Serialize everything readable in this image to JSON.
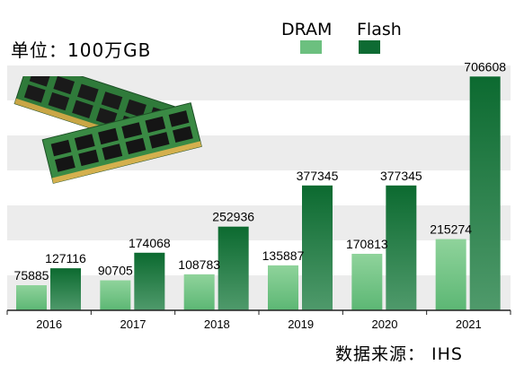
{
  "unit_label": "单位：100万GB",
  "source_label": "数据来源： IHS",
  "legend": [
    {
      "name": "DRAM",
      "color": "#6cc07f"
    },
    {
      "name": "Flash",
      "color": "#0e6b33"
    }
  ],
  "colors": {
    "band_light": "#ececec",
    "band_white": "#ffffff",
    "axis": "#222222",
    "dram_top": "#8fd39b",
    "dram_bottom": "#5cb774",
    "flash_top": "#0c6a30",
    "flash_bottom": "#4f9a6b"
  },
  "chart_data": {
    "type": "bar",
    "categories": [
      "2016",
      "2017",
      "2018",
      "2019",
      "2020",
      "2021"
    ],
    "series": [
      {
        "name": "DRAM",
        "values": [
          75885,
          90705,
          108783,
          135887,
          170813,
          215274
        ]
      },
      {
        "name": "Flash",
        "values": [
          127116,
          174068,
          252936,
          377345,
          377345,
          706608
        ]
      }
    ],
    "ylim": [
      0,
      740000
    ],
    "grid": "alternating horizontal bands",
    "legend_position": "top-right",
    "data_labels": true
  }
}
